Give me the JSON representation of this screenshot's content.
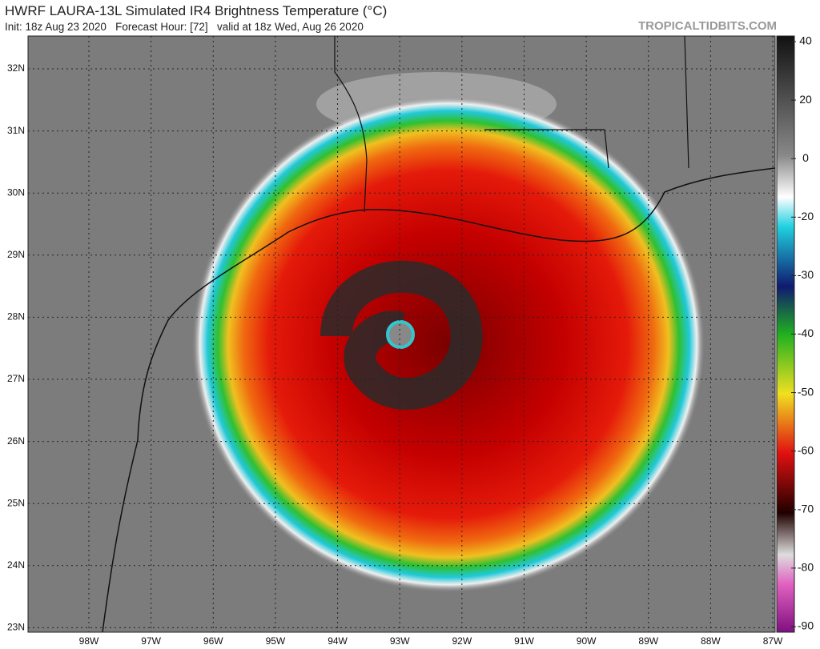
{
  "header": {
    "title": "HWRF LAURA-13L Simulated IR4 Brightness Temperature (°C)",
    "init": "Init: 18z Aug 23 2020",
    "forecast": "Forecast Hour: [72]",
    "valid": "valid at 18z Wed, Aug 26 2020",
    "site": "TROPICALTIDBITS.COM"
  },
  "map": {
    "lat_labels": [
      "32N",
      "31N",
      "30N",
      "29N",
      "28N",
      "27N",
      "26N",
      "25N",
      "24N",
      "23N"
    ],
    "lon_labels": [
      "98W",
      "97W",
      "96W",
      "95W",
      "94W",
      "93W",
      "92W",
      "91W",
      "90W",
      "89W",
      "88W",
      "87W"
    ]
  },
  "colorbar": {
    "ticks": [
      40,
      20,
      0,
      -20,
      -30,
      -40,
      -50,
      -60,
      -70,
      -80,
      -90
    ]
  }
}
